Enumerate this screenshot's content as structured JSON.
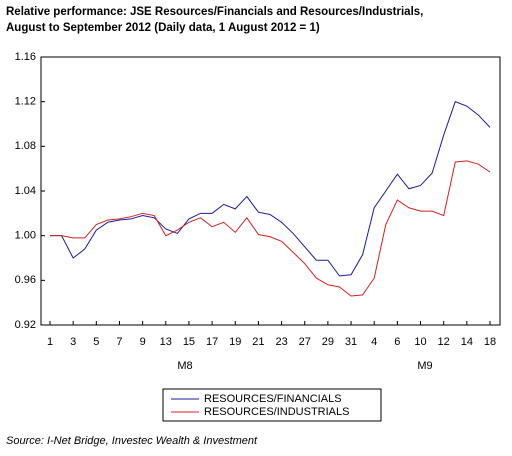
{
  "chart_data": {
    "type": "line",
    "title": [
      "Relative performance: JSE Resources/Financials and Resources/Industrials,",
      "August to September 2012 (Daily data, 1 August 2012 = 1)"
    ],
    "categories": [
      "1",
      null,
      "3",
      null,
      "5",
      null,
      "7",
      null,
      "9",
      null,
      "13",
      null,
      "15",
      null,
      "17",
      null,
      "19",
      null,
      "21",
      null,
      "23",
      null,
      "27",
      null,
      "29",
      null,
      "31",
      null,
      "4",
      null,
      "6",
      null,
      "10",
      null,
      "12",
      null,
      "14",
      null,
      "18"
    ],
    "period_labels": [
      "M8",
      "M9"
    ],
    "series": [
      {
        "name": "RESOURCES/FINANCIALS",
        "color": "#1a1aa0",
        "values": [
          1.0,
          1.0,
          0.98,
          0.988,
          1.005,
          1.012,
          1.014,
          1.015,
          1.018,
          1.016,
          1.006,
          1.002,
          1.015,
          1.02,
          1.02,
          1.028,
          1.024,
          1.035,
          1.021,
          1.019,
          1.012,
          1.002,
          0.99,
          0.978,
          0.978,
          0.964,
          0.965,
          0.983,
          1.025,
          1.04,
          1.055,
          1.042,
          1.045,
          1.056,
          1.09,
          1.12,
          1.116,
          1.108,
          1.097
        ]
      },
      {
        "name": "RESOURCES/INDUSTRIALS",
        "color": "#d42020",
        "values": [
          1.0,
          1.0,
          0.998,
          0.998,
          1.01,
          1.014,
          1.015,
          1.017,
          1.02,
          1.018,
          1.0,
          1.005,
          1.012,
          1.016,
          1.008,
          1.012,
          1.003,
          1.016,
          1.001,
          0.999,
          0.995,
          0.985,
          0.975,
          0.962,
          0.956,
          0.954,
          0.946,
          0.947,
          0.962,
          1.01,
          1.032,
          1.025,
          1.022,
          1.022,
          1.018,
          1.066,
          1.067,
          1.064,
          1.057
        ]
      }
    ],
    "ylim": [
      0.92,
      1.16
    ],
    "yticks": [
      {
        "value": 0.92,
        "label": "0.92"
      },
      {
        "value": 0.96,
        "label": "0.96"
      },
      {
        "value": 1.0,
        "label": "1.00"
      },
      {
        "value": 1.04,
        "label": "1.04"
      },
      {
        "value": 1.08,
        "label": "1.08"
      },
      {
        "value": 1.12,
        "label": "1.12"
      },
      {
        "value": 1.16,
        "label": "1.16"
      }
    ],
    "grid": false,
    "source": "Source: I-Net Bridge, Investec Wealth & Investment"
  }
}
